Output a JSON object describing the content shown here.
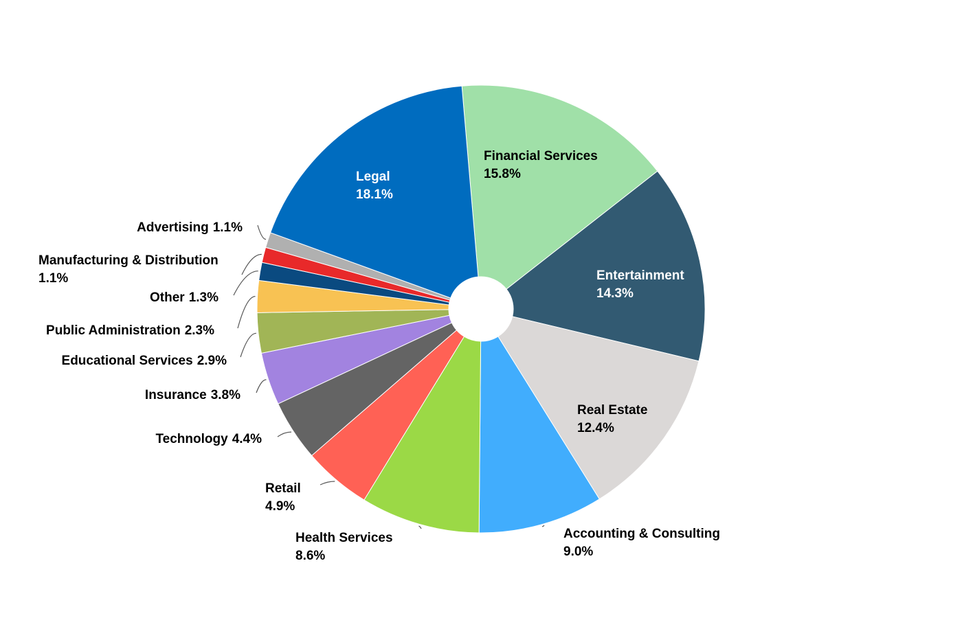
{
  "chart_data": {
    "type": "donut",
    "categories": [
      "Financial Services",
      "Entertainment",
      "Real Estate",
      "Accounting & Consulting",
      "Health Services",
      "Retail",
      "Technology",
      "Insurance",
      "Educational Services",
      "Public Administration",
      "Other",
      "Manufacturing & Distribution",
      "Advertising",
      "Legal"
    ],
    "values": [
      15.8,
      14.3,
      12.4,
      9.0,
      8.6,
      4.9,
      4.4,
      3.8,
      2.9,
      2.3,
      1.3,
      1.1,
      1.1,
      18.1
    ],
    "value_labels": [
      "15.8%",
      "14.3%",
      "12.4%",
      "9.0%",
      "8.6%",
      "4.9%",
      "4.4%",
      "3.8%",
      "2.9%",
      "2.3%",
      "1.3%",
      "1.1%",
      "1.1%",
      "18.1%"
    ],
    "colors": [
      "#a0e0a8",
      "#325a72",
      "#dbd8d7",
      "#41adfd",
      "#9bd946",
      "#ff6155",
      "#646464",
      "#a283e0",
      "#a1b556",
      "#f8c253",
      "#0a4a80",
      "#e8292a",
      "#b0b0b0",
      "#006cbf"
    ]
  }
}
